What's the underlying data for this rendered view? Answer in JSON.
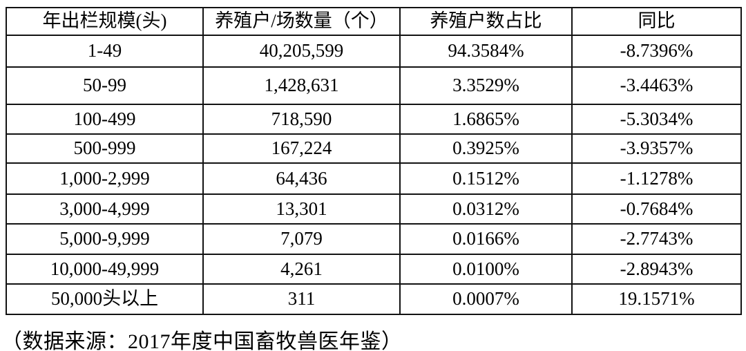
{
  "table": {
    "header": [
      "年出栏规模(头)",
      "养殖户/场数量（个）",
      "养殖户数占比",
      "同比"
    ],
    "rows": [
      [
        "1-49",
        "40,205,599",
        "94.3584%",
        "-8.7396%"
      ],
      [
        "50-99",
        "1,428,631",
        "3.3529%",
        "-3.4463%"
      ],
      [
        "100-499",
        "718,590",
        "1.6865%",
        "-5.3034%"
      ],
      [
        "500-999",
        "167,224",
        "0.3925%",
        "-3.9357%"
      ],
      [
        "1,000-2,999",
        "64,436",
        "0.1512%",
        "-1.1278%"
      ],
      [
        "3,000-4,999",
        "13,301",
        "0.0312%",
        "-0.7684%"
      ],
      [
        "5,000-9,999",
        "7,079",
        "0.0166%",
        "-2.7743%"
      ],
      [
        "10,000-49,999",
        "4,261",
        "0.0100%",
        "-2.8943%"
      ],
      [
        "50,000头以上",
        "311",
        "0.0007%",
        "19.1571%"
      ]
    ]
  },
  "footer": {
    "source_note": "（数据来源：2017年度中国畜牧兽医年鉴）"
  },
  "colors": {
    "border": "#121212",
    "text": "#000000",
    "background": "#ffffff"
  }
}
